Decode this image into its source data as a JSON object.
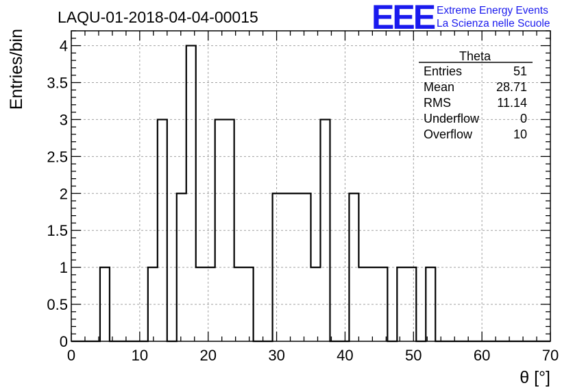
{
  "header": {
    "title": "LAQU-01-2018-04-04-00015",
    "logo_text": "EEE",
    "logo_line1": "Extreme Energy Events",
    "logo_line2": "La Scienza nelle Scuole"
  },
  "stats_box": {
    "title": "Theta",
    "rows": [
      {
        "label": "Entries",
        "value": "51"
      },
      {
        "label": "Mean",
        "value": "28.71"
      },
      {
        "label": "RMS",
        "value": "11.14"
      },
      {
        "label": "Underflow",
        "value": "0"
      },
      {
        "label": "Overflow",
        "value": "10"
      }
    ]
  },
  "chart_data": {
    "type": "bar",
    "title": "LAQU-01-2018-04-04-00015",
    "xlabel": "θ [°]",
    "ylabel": "Entries/bin",
    "xlim": [
      0,
      70
    ],
    "ylim": [
      0,
      4.2
    ],
    "grid": true,
    "bin_width": 1.4,
    "xticks": [
      "0",
      "10",
      "20",
      "30",
      "40",
      "50",
      "60",
      "70"
    ],
    "yticks": [
      "0",
      "0.5",
      "1",
      "1.5",
      "2",
      "2.5",
      "3",
      "3.5",
      "4"
    ],
    "xtick_values": [
      0,
      10,
      20,
      30,
      40,
      50,
      60,
      70
    ],
    "ytick_values": [
      0,
      0.5,
      1,
      1.5,
      2,
      2.5,
      3,
      3.5,
      4
    ],
    "values": [
      0,
      0,
      0,
      1,
      0,
      0,
      0,
      0,
      1,
      3,
      0,
      2,
      4,
      1,
      1,
      3,
      3,
      1,
      1,
      0,
      0,
      2,
      2,
      2,
      2,
      1,
      3,
      0,
      0,
      2,
      1,
      1,
      1,
      0,
      1,
      1,
      0,
      1,
      0,
      0,
      0,
      0,
      0,
      0,
      0,
      0,
      0,
      0,
      0,
      0
    ]
  },
  "colors": {
    "axis": "#000000",
    "grid": "#a0a0a0",
    "histogram": "#000000",
    "logo": "#1a1aee"
  }
}
